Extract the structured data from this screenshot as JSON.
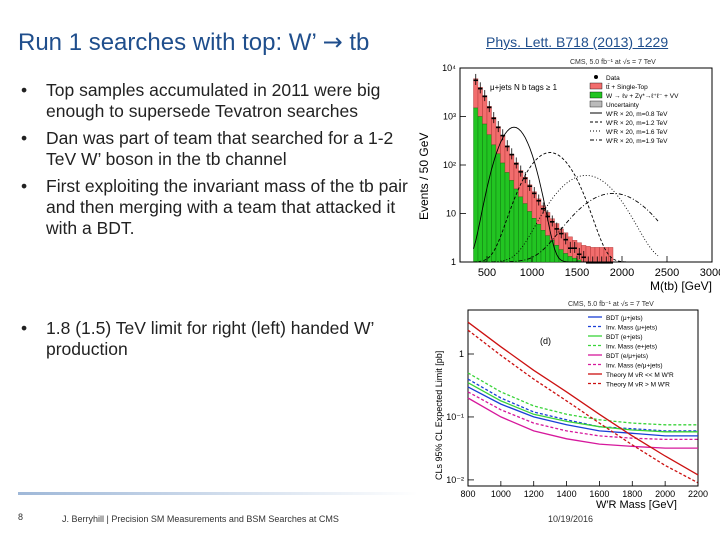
{
  "slide": {
    "title_left": "Run 1 searches with top: W’",
    "title_arrow": "→",
    "title_right": "tb",
    "reference": "Phys. Lett. B718 (2013) 1229",
    "bullets": [
      "Top samples accumulated in 2011 were big enough to supersede Tevatron searches",
      "Dan was part of team that searched for a 1-2 TeV W’ boson in the tb channel",
      "First exploiting the invariant mass of the tb pair and then merging with a team that attacked it with a BDT."
    ],
    "bullets2": [
      "1.8 (1.5) TeV limit for right (left) handed W’ production"
    ],
    "footer": {
      "page": "8",
      "text": "J. Berryhill | Precision SM Measurements and BSM Searches at CMS",
      "date": "10/19/2016"
    }
  },
  "chart_data": [
    {
      "type": "bar",
      "header": "CMS, 5.0 fb⁻¹ at √s = 7 TeV",
      "channel_label": "μ+jets N b tags ≥ 1",
      "xlabel": "M(tb) [GeV]",
      "ylabel": "Events / 50 GeV",
      "yscale": "log",
      "ylim": [
        1,
        10000
      ],
      "xlim": [
        200,
        3000
      ],
      "xticks": [
        "500",
        "1000",
        "1500",
        "2000",
        "2500",
        "3000"
      ],
      "yticks": [
        "1",
        "10",
        "10²",
        "10³",
        "10⁴"
      ],
      "legend": [
        "Data",
        "tt̄ + Single-Top",
        "W → ℓν + Zγ*→ℓ⁺ℓ⁻ + VV",
        "Uncertainty",
        "W′R × 20, m=0.8 TeV",
        "W′R × 20, m=1.2 TeV",
        "W′R × 20, m=1.6 TeV",
        "W′R × 20, m=1.9 TeV"
      ],
      "colors": {
        "ttbar": "#f26d6d",
        "wjets": "#22c522",
        "data": "#000000"
      },
      "mass_bins": [
        350,
        400,
        450,
        500,
        550,
        600,
        650,
        700,
        750,
        800,
        850,
        900,
        950,
        1000,
        1050,
        1100,
        1150,
        1200,
        1250,
        1300,
        1350,
        1400,
        1450,
        1500,
        1550,
        1600,
        1650,
        1700,
        1750,
        1800,
        1850
      ],
      "ttbar_events": [
        4500,
        3000,
        2000,
        1200,
        700,
        450,
        300,
        180,
        120,
        80,
        55,
        40,
        28,
        20,
        14,
        10,
        7,
        5,
        4,
        3,
        2.5,
        2,
        1.6,
        1.4,
        1.2,
        1.1,
        1,
        1,
        1,
        1,
        1
      ],
      "wjets_events": [
        1500,
        1000,
        700,
        420,
        260,
        170,
        110,
        70,
        48,
        32,
        22,
        16,
        11,
        8,
        6,
        4.5,
        3.5,
        2.8,
        2.2,
        1.8,
        1.5,
        1.3,
        1.2,
        1.1,
        1,
        1,
        1,
        1,
        1,
        1,
        1
      ],
      "data_events": [
        5800,
        3900,
        2700,
        1600,
        950,
        620,
        420,
        250,
        170,
        110,
        75,
        55,
        38,
        27,
        19,
        13,
        9,
        7,
        5,
        4,
        3,
        2,
        2,
        1.5,
        1.3,
        1,
        1,
        1,
        1,
        1,
        1
      ]
    },
    {
      "type": "line",
      "header": "CMS, 5.0 fb⁻¹ at √s = 7 TeV",
      "panel_label": "(d)",
      "xlabel": "W′R Mass [GeV]",
      "ylabel": "CLs 95% CL Expected Limit [pb]",
      "yscale": "log",
      "xlim": [
        800,
        2200
      ],
      "ylim": [
        0.008,
        5
      ],
      "xticks": [
        "800",
        "1000",
        "1200",
        "1400",
        "1600",
        "1800",
        "2000",
        "2200"
      ],
      "yticks": [
        "10⁻²",
        "10⁻¹",
        "1"
      ],
      "x": [
        800,
        1000,
        1200,
        1400,
        1600,
        1800,
        2000,
        2200
      ],
      "series": [
        {
          "name": "BDT (μ+jets)",
          "color": "#1a3fd6",
          "style": "solid",
          "values": [
            0.3,
            0.16,
            0.1,
            0.075,
            0.06,
            0.055,
            0.05,
            0.05
          ]
        },
        {
          "name": "Inv. Mass (μ+jets)",
          "color": "#1a3fd6",
          "style": "dashed",
          "values": [
            0.4,
            0.2,
            0.12,
            0.09,
            0.07,
            0.065,
            0.06,
            0.06
          ]
        },
        {
          "name": "BDT (e+jets)",
          "color": "#3ad43a",
          "style": "solid",
          "values": [
            0.35,
            0.18,
            0.11,
            0.085,
            0.07,
            0.062,
            0.058,
            0.058
          ]
        },
        {
          "name": "Inv. Mass (e+jets)",
          "color": "#3ad43a",
          "style": "dashed",
          "values": [
            0.5,
            0.25,
            0.15,
            0.11,
            0.09,
            0.08,
            0.075,
            0.075
          ]
        },
        {
          "name": "BDT (e/μ+jets)",
          "color": "#d6189c",
          "style": "solid",
          "values": [
            0.2,
            0.1,
            0.06,
            0.045,
            0.037,
            0.034,
            0.032,
            0.032
          ]
        },
        {
          "name": "Inv. Mass (e/μ+jets)",
          "color": "#d6189c",
          "style": "dashed",
          "values": [
            0.25,
            0.13,
            0.08,
            0.06,
            0.05,
            0.046,
            0.044,
            0.044
          ]
        },
        {
          "name": "Theory M νR << M W′R",
          "color": "#cc1111",
          "style": "solid",
          "values": [
            3.2,
            1.3,
            0.55,
            0.25,
            0.11,
            0.05,
            0.024,
            0.012
          ]
        },
        {
          "name": "Theory M νR > M W′R",
          "color": "#cc1111",
          "style": "dashed",
          "values": [
            2.4,
            0.95,
            0.4,
            0.18,
            0.08,
            0.036,
            0.017,
            0.009
          ]
        }
      ]
    }
  ]
}
